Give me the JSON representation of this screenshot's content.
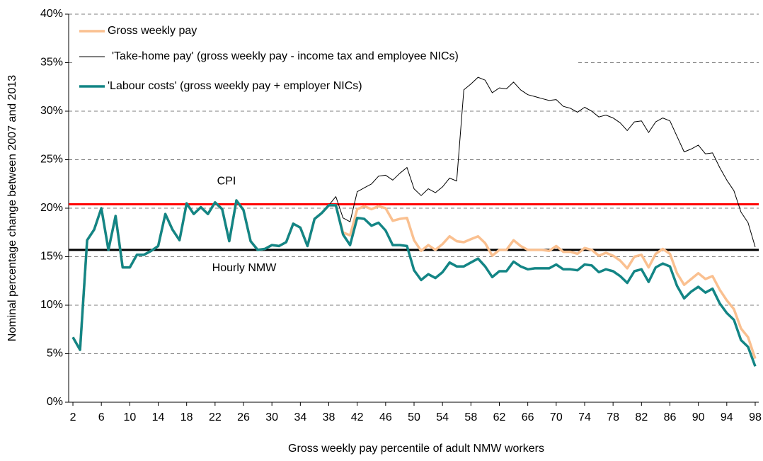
{
  "chart_data": {
    "type": "line",
    "x_label": "Gross weekly pay percentile of adult NMW workers",
    "y_label": "Nominal percentage change between 2007 and 2013",
    "x": [
      2,
      3,
      4,
      5,
      6,
      7,
      8,
      9,
      10,
      11,
      12,
      13,
      14,
      15,
      16,
      17,
      18,
      19,
      20,
      21,
      22,
      23,
      24,
      25,
      26,
      27,
      28,
      29,
      30,
      31,
      32,
      33,
      34,
      35,
      36,
      37,
      38,
      39,
      40,
      41,
      42,
      43,
      44,
      45,
      46,
      47,
      48,
      49,
      50,
      51,
      52,
      53,
      54,
      55,
      56,
      57,
      58,
      59,
      60,
      61,
      62,
      63,
      64,
      65,
      66,
      67,
      68,
      69,
      70,
      71,
      72,
      73,
      74,
      75,
      76,
      77,
      78,
      79,
      80,
      81,
      82,
      83,
      84,
      85,
      86,
      87,
      88,
      89,
      90,
      91,
      92,
      93,
      94,
      95,
      96,
      97,
      98
    ],
    "xlim": [
      1.4,
      98.5
    ],
    "xticks": [
      2,
      6,
      10,
      14,
      18,
      22,
      26,
      30,
      34,
      38,
      42,
      46,
      50,
      54,
      58,
      62,
      66,
      70,
      74,
      78,
      82,
      86,
      90,
      94,
      98
    ],
    "ylim": [
      0,
      40
    ],
    "yticks": [
      {
        "value": 0,
        "label": "0%"
      },
      {
        "value": 5,
        "label": "5%"
      },
      {
        "value": 10,
        "label": "10%"
      },
      {
        "value": 15,
        "label": "15%"
      },
      {
        "value": 20,
        "label": "20%"
      },
      {
        "value": 25,
        "label": "25%"
      },
      {
        "value": 30,
        "label": "30%"
      },
      {
        "value": 35,
        "label": "35%"
      },
      {
        "value": 40,
        "label": "40%"
      }
    ],
    "grid": true,
    "legend": "top-left",
    "reference_lines": [
      {
        "label": "CPI",
        "value": 20.4,
        "color": "#ff0000"
      },
      {
        "label": "Hourly NMW",
        "value": 15.7,
        "color": "#000000"
      }
    ],
    "series": [
      {
        "name": "Gross weekly pay",
        "color": "#fac090",
        "width": 3.5,
        "values": [
          6.7,
          5.4,
          16.7,
          17.8,
          20.0,
          15.7,
          19.2,
          13.9,
          13.9,
          15.2,
          15.2,
          15.6,
          16.1,
          19.4,
          17.8,
          16.7,
          20.5,
          19.4,
          20.1,
          19.4,
          20.6,
          19.9,
          16.6,
          20.8,
          19.8,
          16.6,
          15.7,
          15.8,
          16.2,
          16.1,
          16.5,
          18.4,
          18.0,
          16.1,
          18.9,
          19.5,
          20.3,
          20.3,
          17.5,
          17.2,
          19.9,
          20.2,
          19.9,
          20.2,
          20.0,
          18.7,
          18.9,
          19.0,
          16.7,
          15.6,
          16.2,
          15.7,
          16.3,
          17.1,
          16.6,
          16.5,
          16.8,
          17.1,
          16.4,
          15.1,
          15.7,
          15.7,
          16.7,
          16.1,
          15.7,
          15.7,
          15.7,
          15.6,
          16.1,
          15.5,
          15.5,
          15.3,
          15.9,
          15.7,
          15.1,
          15.4,
          15.1,
          14.6,
          13.8,
          15.0,
          15.2,
          13.9,
          15.3,
          15.8,
          15.3,
          13.3,
          12.1,
          12.7,
          13.3,
          12.7,
          13.0,
          11.6,
          10.5,
          9.6,
          7.6,
          6.7,
          4.5
        ]
      },
      {
        "name": "'Take-home pay' (gross weekly pay - income tax and employee NICs)",
        "color": "#000000",
        "width": 1,
        "values": [
          6.7,
          5.4,
          16.7,
          17.8,
          20.0,
          15.7,
          19.2,
          13.9,
          13.9,
          15.2,
          15.2,
          15.6,
          16.1,
          19.4,
          17.8,
          16.7,
          20.5,
          19.4,
          20.1,
          19.4,
          20.6,
          19.9,
          16.6,
          20.8,
          19.8,
          16.6,
          15.7,
          15.8,
          16.2,
          16.1,
          16.5,
          18.4,
          18.0,
          16.1,
          18.9,
          19.5,
          20.3,
          21.2,
          19.0,
          18.6,
          21.7,
          22.1,
          22.5,
          23.3,
          23.4,
          22.9,
          23.6,
          24.2,
          22.0,
          21.3,
          22.0,
          21.6,
          22.2,
          23.1,
          22.8,
          32.2,
          32.8,
          33.5,
          33.2,
          31.9,
          32.4,
          32.3,
          33.0,
          32.2,
          31.7,
          31.5,
          31.3,
          31.1,
          31.2,
          30.5,
          30.3,
          29.9,
          30.4,
          30.0,
          29.4,
          29.6,
          29.3,
          28.8,
          28.0,
          28.9,
          29.0,
          27.8,
          28.9,
          29.3,
          29.0,
          27.4,
          25.8,
          26.1,
          26.5,
          25.6,
          25.7,
          24.2,
          22.9,
          21.8,
          19.6,
          18.5,
          16.0
        ]
      },
      {
        "name": "'Labour costs' (gross weekly pay + employer NICs)",
        "color": "#138585",
        "width": 3.5,
        "values": [
          6.7,
          5.4,
          16.7,
          17.8,
          20.0,
          15.7,
          19.2,
          13.9,
          13.9,
          15.2,
          15.2,
          15.6,
          16.1,
          19.4,
          17.8,
          16.7,
          20.5,
          19.4,
          20.1,
          19.4,
          20.6,
          19.9,
          16.6,
          20.8,
          19.8,
          16.6,
          15.7,
          15.8,
          16.2,
          16.1,
          16.5,
          18.4,
          18.0,
          16.1,
          18.9,
          19.5,
          20.3,
          20.3,
          17.3,
          16.2,
          19.0,
          18.9,
          18.2,
          18.5,
          17.7,
          16.2,
          16.2,
          16.1,
          13.6,
          12.6,
          13.2,
          12.8,
          13.4,
          14.4,
          14.0,
          14.0,
          14.4,
          14.8,
          14.0,
          12.9,
          13.5,
          13.5,
          14.5,
          14.0,
          13.7,
          13.8,
          13.8,
          13.8,
          14.2,
          13.7,
          13.7,
          13.6,
          14.2,
          14.1,
          13.4,
          13.7,
          13.5,
          13.0,
          12.3,
          13.5,
          13.7,
          12.4,
          13.9,
          14.3,
          14.0,
          12.0,
          10.7,
          11.4,
          11.9,
          11.3,
          11.7,
          10.2,
          9.2,
          8.5,
          6.4,
          5.7,
          3.7
        ]
      }
    ]
  }
}
